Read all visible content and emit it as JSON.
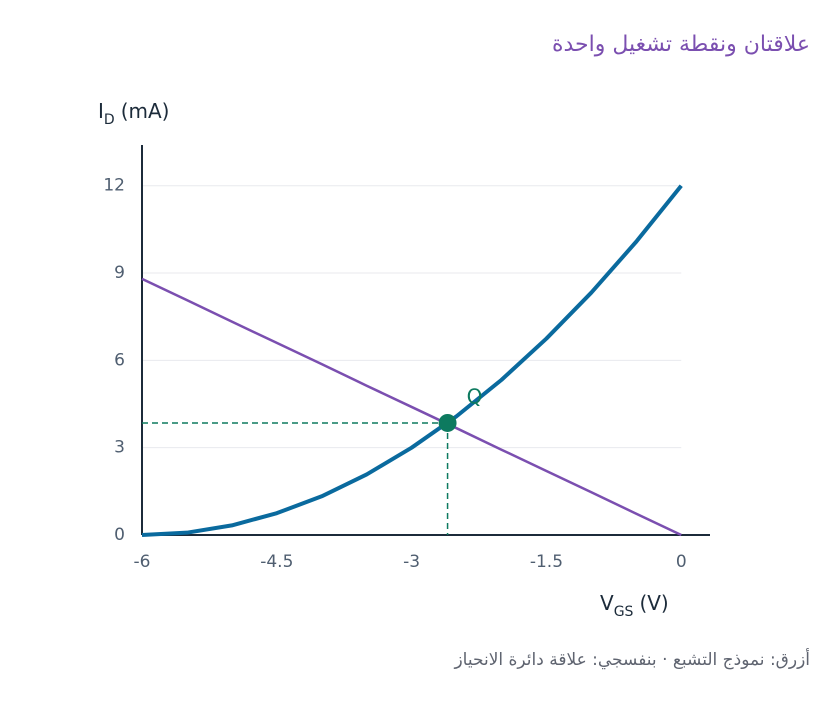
{
  "title": "علاقتان ونقطة تشغيل واحدة",
  "caption": "أزرق: نموذج التشبع · بنفسجي: علاقة دائرة الانحياز",
  "chart_data": {
    "type": "line",
    "y_label": [
      "I",
      "D",
      "(mA)"
    ],
    "x_label": [
      "V",
      "GS",
      "(V)"
    ],
    "x": [
      -6,
      -5.5,
      -5,
      -4.5,
      -4,
      -3.5,
      -3,
      -2.5,
      -2,
      -1.5,
      -1,
      -0.5,
      0
    ],
    "series": [
      {
        "color": "#0a6a9e",
        "values": [
          0,
          0.08,
          0.33,
          0.75,
          1.33,
          2.08,
          3,
          4.08,
          5.33,
          6.75,
          8.33,
          10.08,
          12
        ]
      },
      {
        "color": "#7b4fb0",
        "values": [
          8.8,
          8.07,
          7.33,
          6.6,
          5.87,
          5.13,
          4.4,
          3.67,
          2.93,
          2.2,
          1.47,
          0.73,
          0
        ]
      }
    ],
    "annotation": {
      "label": "Q",
      "x": -2.6,
      "y": 3.85,
      "color": "#0d7a5f"
    },
    "xlim": [
      -6,
      0.32
    ],
    "ylim": [
      0,
      13.4
    ],
    "xticks": [
      -6,
      -4.5,
      -3,
      -1.5,
      0
    ],
    "yticks": [
      0,
      3,
      6,
      9,
      12
    ],
    "grid": true
  }
}
